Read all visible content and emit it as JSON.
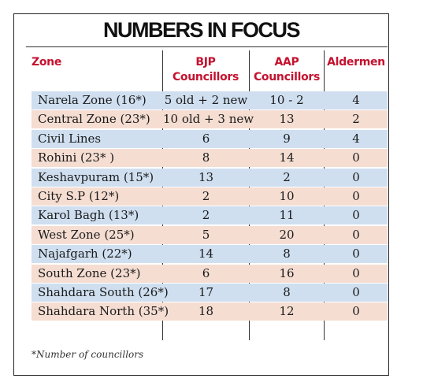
{
  "title": "NUMBERS IN FOCUS",
  "headers": {
    "zone": "Zone",
    "bjp": "BJP Councillors",
    "aap": "AAP Councillors",
    "aldermen": "Aldermen"
  },
  "rows": [
    {
      "zone": "Narela Zone (16*)",
      "bjp": "5 old + 2 new",
      "aap": "10 - 2",
      "aldermen": "4"
    },
    {
      "zone": "Central Zone (23*)",
      "bjp": "10 old + 3 new",
      "aap": "13",
      "aldermen": "2"
    },
    {
      "zone": "Civil Lines",
      "bjp": "6",
      "aap": "9",
      "aldermen": "4"
    },
    {
      "zone": "Rohini (23* )",
      "bjp": "8",
      "aap": "14",
      "aldermen": "0"
    },
    {
      "zone": "Keshavpuram (15*)",
      "bjp": "13",
      "aap": "2",
      "aldermen": "0"
    },
    {
      "zone": "City S.P (12*)",
      "bjp": "2",
      "aap": "10",
      "aldermen": "0"
    },
    {
      "zone": "Karol Bagh (13*)",
      "bjp": "2",
      "aap": "11",
      "aldermen": "0"
    },
    {
      "zone": "West Zone (25*)",
      "bjp": "5",
      "aap": "20",
      "aldermen": "0"
    },
    {
      "zone": "Najafgarh (22*)",
      "bjp": "14",
      "aap": "8",
      "aldermen": "0"
    },
    {
      "zone": "South Zone (23*)",
      "bjp": "6",
      "aap": "16",
      "aldermen": "0"
    },
    {
      "zone": "Shahdara South (26*)",
      "bjp": "17",
      "aap": "8",
      "aldermen": "0"
    },
    {
      "zone": "Shahdara North (35*)",
      "bjp": "18",
      "aap": "12",
      "aldermen": "0"
    }
  ],
  "footnote": "*Number of councillors",
  "colors": {
    "header_text": "#c4122f",
    "row_blue": "#cfdff0",
    "row_pink": "#f5ddd2"
  }
}
